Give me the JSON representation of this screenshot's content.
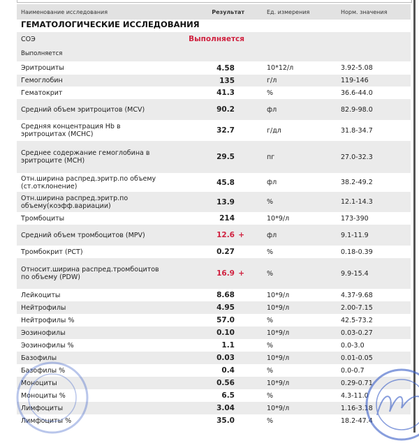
{
  "header": {
    "name": "Наименование исследования",
    "result": "Результат",
    "unit": "Ед. измерения",
    "norm": "Норм. значения"
  },
  "section_title": "ГЕМАТОЛОГИЧЕСКИЕ ИССЛЕДОВАНИЯ",
  "soe": {
    "name": "СОЭ",
    "result": "Выполняется",
    "note": "Выполняется"
  },
  "rows": [
    {
      "name": "Эритроциты",
      "result": "4.58",
      "unit": "10*12/л",
      "norm": "3.92-5.08"
    },
    {
      "name": "Гемоглобин",
      "result": "135",
      "unit": "г/л",
      "norm": "119-146"
    },
    {
      "name": "Гематокрит",
      "result": "41.3",
      "unit": "%",
      "norm": "36.6-44.0"
    },
    {
      "name": "Средний объем эритроцитов (MCV)",
      "result": "90.2",
      "unit": "фл",
      "norm": "82.9-98.0"
    },
    {
      "name": "Средняя концентрация Hb в эритроцитах (MCHC)",
      "result": "32.7",
      "unit": "г/дл",
      "norm": "31.8-34.7"
    },
    {
      "name": "Среднее содержание гемоглобина в эритроците (MCH)",
      "result": "29.5",
      "unit": "пг",
      "norm": "27.0-32.3"
    },
    {
      "name": "Отн.ширина распред.эритр.по объему (ст.отклонение)",
      "result": "45.8",
      "unit": "фл",
      "norm": "38.2-49.2"
    },
    {
      "name": "Отн.ширина распред.эритр.по объему(коэфф.вариации)",
      "result": "13.9",
      "unit": "%",
      "norm": "12.1-14.3"
    },
    {
      "name": "Тромбоциты",
      "result": "214",
      "unit": "10*9/л",
      "norm": "173-390"
    },
    {
      "name": "Средний объем тромбоцитов (MPV)",
      "result": "12.6",
      "flag": "+",
      "unit": "фл",
      "norm": "9.1-11.9"
    },
    {
      "name": "Тромбокрит (PCT)",
      "result": "0.27",
      "unit": "%",
      "norm": "0.18-0.39"
    },
    {
      "name": "Относит.ширина распред.тромбоцитов по объему (PDW)",
      "result": "16.9",
      "flag": "+",
      "unit": "%",
      "norm": "9.9-15.4"
    },
    {
      "name": "Лейкоциты",
      "result": "8.68",
      "unit": "10*9/л",
      "norm": "4.37-9.68"
    },
    {
      "name": "Нейтрофилы",
      "result": "4.95",
      "unit": "10*9/л",
      "norm": "2.00-7.15"
    },
    {
      "name": "Нейтрофилы %",
      "result": "57.0",
      "unit": "%",
      "norm": "42.5-73.2"
    },
    {
      "name": "Эозинофилы",
      "result": "0.10",
      "unit": "10*9/л",
      "norm": "0.03-0.27"
    },
    {
      "name": "Эозинофилы %",
      "result": "1.1",
      "unit": "%",
      "norm": "0.0-3.0"
    },
    {
      "name": "Базофилы",
      "result": "0.03",
      "unit": "10*9/л",
      "norm": "0.01-0.05"
    },
    {
      "name": "Базофилы %",
      "result": "0.4",
      "unit": "%",
      "norm": "0.0-0.7"
    },
    {
      "name": "Моноциты",
      "result": "0.56",
      "unit": "10*9/л",
      "norm": "0.29-0.71"
    },
    {
      "name": "Моноциты %",
      "result": "6.5",
      "unit": "%",
      "norm": "4.3-11.0"
    },
    {
      "name": "Лимфоциты",
      "result": "3.04",
      "unit": "10*9/л",
      "norm": "1.16-3.18"
    },
    {
      "name": "Лимфоциты %",
      "result": "35.0",
      "unit": "%",
      "norm": "18.2-47.4"
    }
  ],
  "colors": {
    "abnormal": "#d0213f",
    "stripe": "#ebebeb",
    "stamp": "#3a5fc8"
  }
}
